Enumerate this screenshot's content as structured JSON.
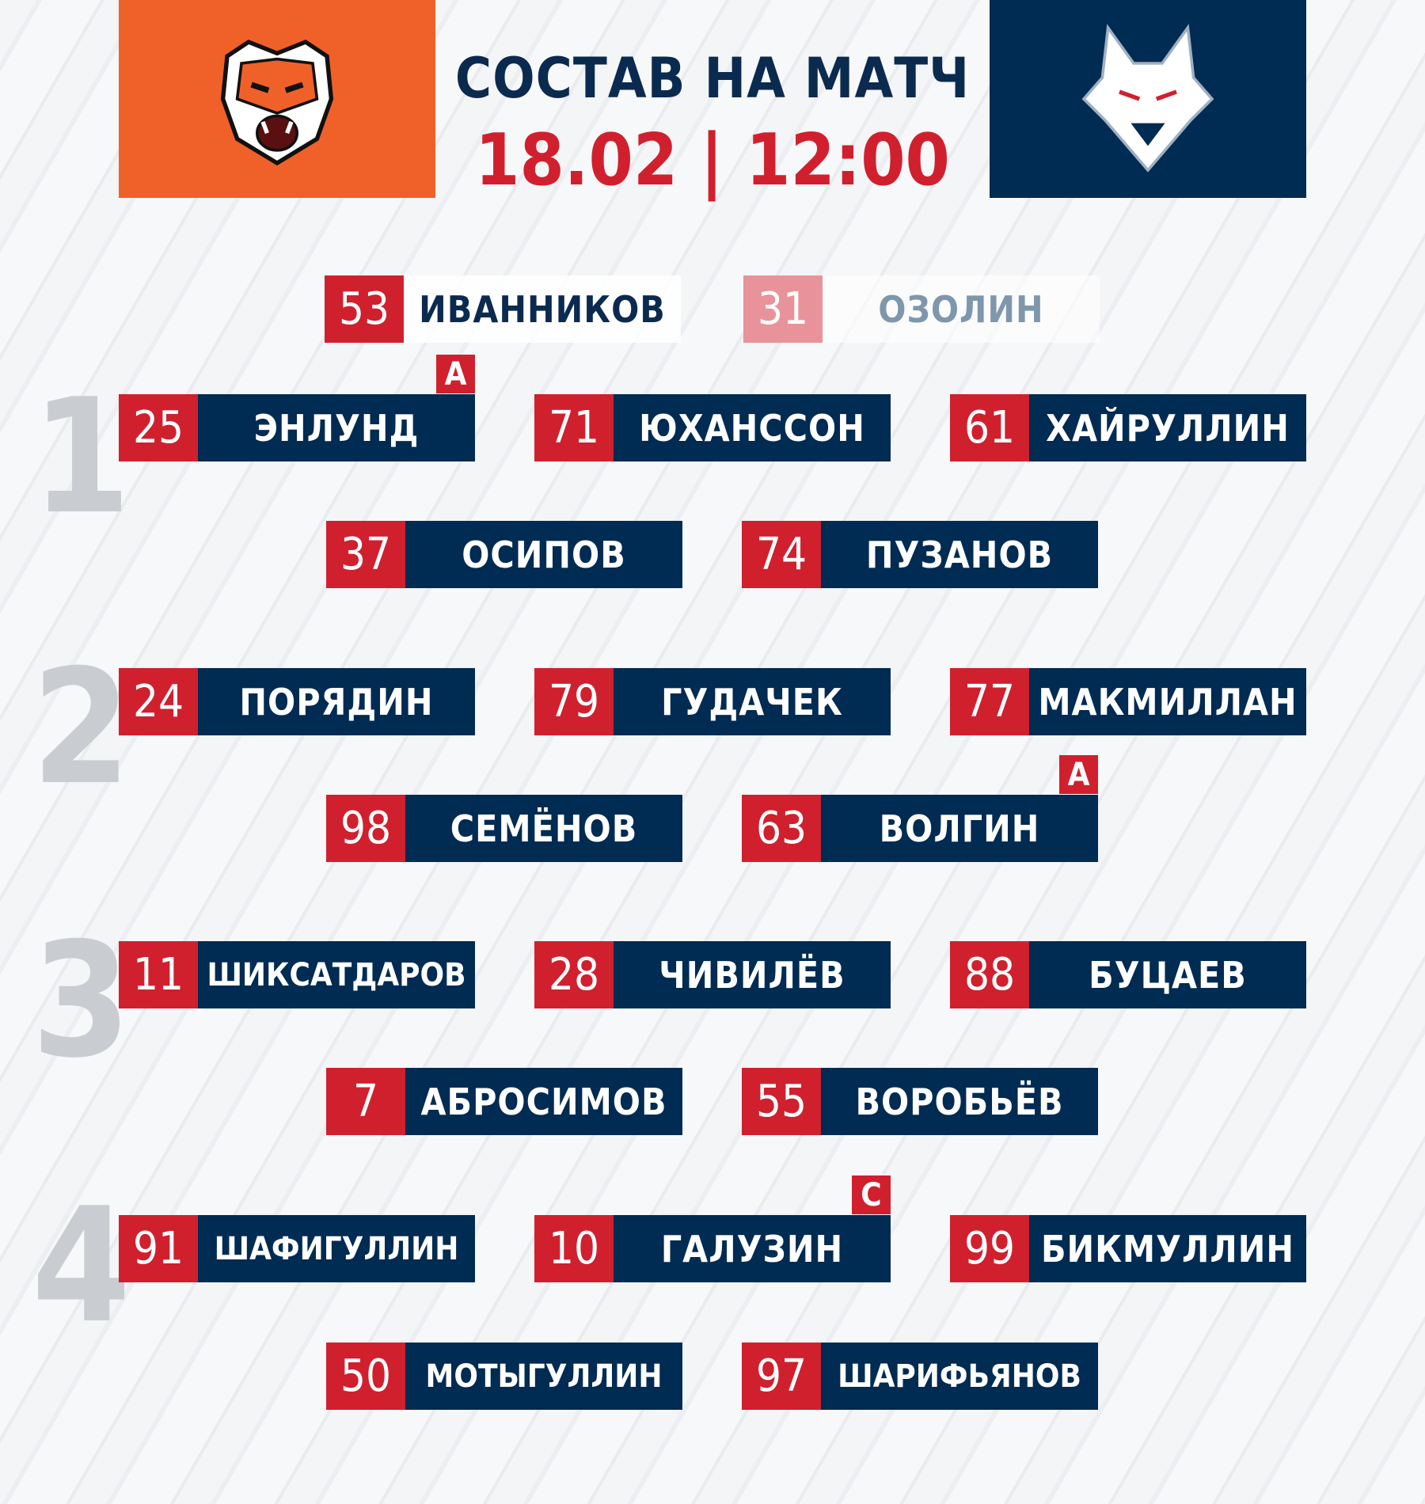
{
  "header": {
    "title": "СОСТАВ НА МАТЧ",
    "datetime": "18.02 | 12:00"
  },
  "teams": {
    "home": {
      "logo": "tiger-logo",
      "color": "#f0612a"
    },
    "away": {
      "logo": "wolf-logo",
      "color": "#002b52"
    }
  },
  "colors": {
    "number_bg": "#d0202e",
    "name_bg": "#002b52"
  },
  "goalies": [
    {
      "number": "53",
      "name": "ИВАННИКОВ",
      "starter": true
    },
    {
      "number": "31",
      "name": "ОЗОЛИН",
      "starter": false
    }
  ],
  "lines": [
    {
      "label": "1",
      "forwards": [
        {
          "number": "25",
          "name": "ЭНЛУНД",
          "badge": "А"
        },
        {
          "number": "71",
          "name": "ЮХАНССОН"
        },
        {
          "number": "61",
          "name": "ХАЙРУЛЛИН"
        }
      ],
      "defense": [
        {
          "number": "37",
          "name": "ОСИПОВ"
        },
        {
          "number": "74",
          "name": "ПУЗАНОВ"
        }
      ]
    },
    {
      "label": "2",
      "forwards": [
        {
          "number": "24",
          "name": "ПОРЯДИН"
        },
        {
          "number": "79",
          "name": "ГУДАЧЕК"
        },
        {
          "number": "77",
          "name": "МАКМИЛЛАН"
        }
      ],
      "defense": [
        {
          "number": "98",
          "name": "СЕМЁНОВ"
        },
        {
          "number": "63",
          "name": "ВОЛГИН",
          "badge": "А"
        }
      ]
    },
    {
      "label": "3",
      "forwards": [
        {
          "number": "11",
          "name": "ШИКСАТДАРОВ"
        },
        {
          "number": "28",
          "name": "ЧИВИЛЁВ"
        },
        {
          "number": "88",
          "name": "БУЦАЕВ"
        }
      ],
      "defense": [
        {
          "number": "7",
          "name": "АБРОСИМОВ"
        },
        {
          "number": "55",
          "name": "ВОРОБЬЁВ"
        }
      ]
    },
    {
      "label": "4",
      "forwards": [
        {
          "number": "91",
          "name": "ШАФИГУЛЛИН"
        },
        {
          "number": "10",
          "name": "ГАЛУЗИН",
          "badge": "С"
        },
        {
          "number": "99",
          "name": "БИКМУЛЛИН"
        }
      ],
      "defense": [
        {
          "number": "50",
          "name": "МОТЫГУЛЛИН"
        },
        {
          "number": "97",
          "name": "ШАРИФЬЯНОВ"
        }
      ]
    }
  ]
}
